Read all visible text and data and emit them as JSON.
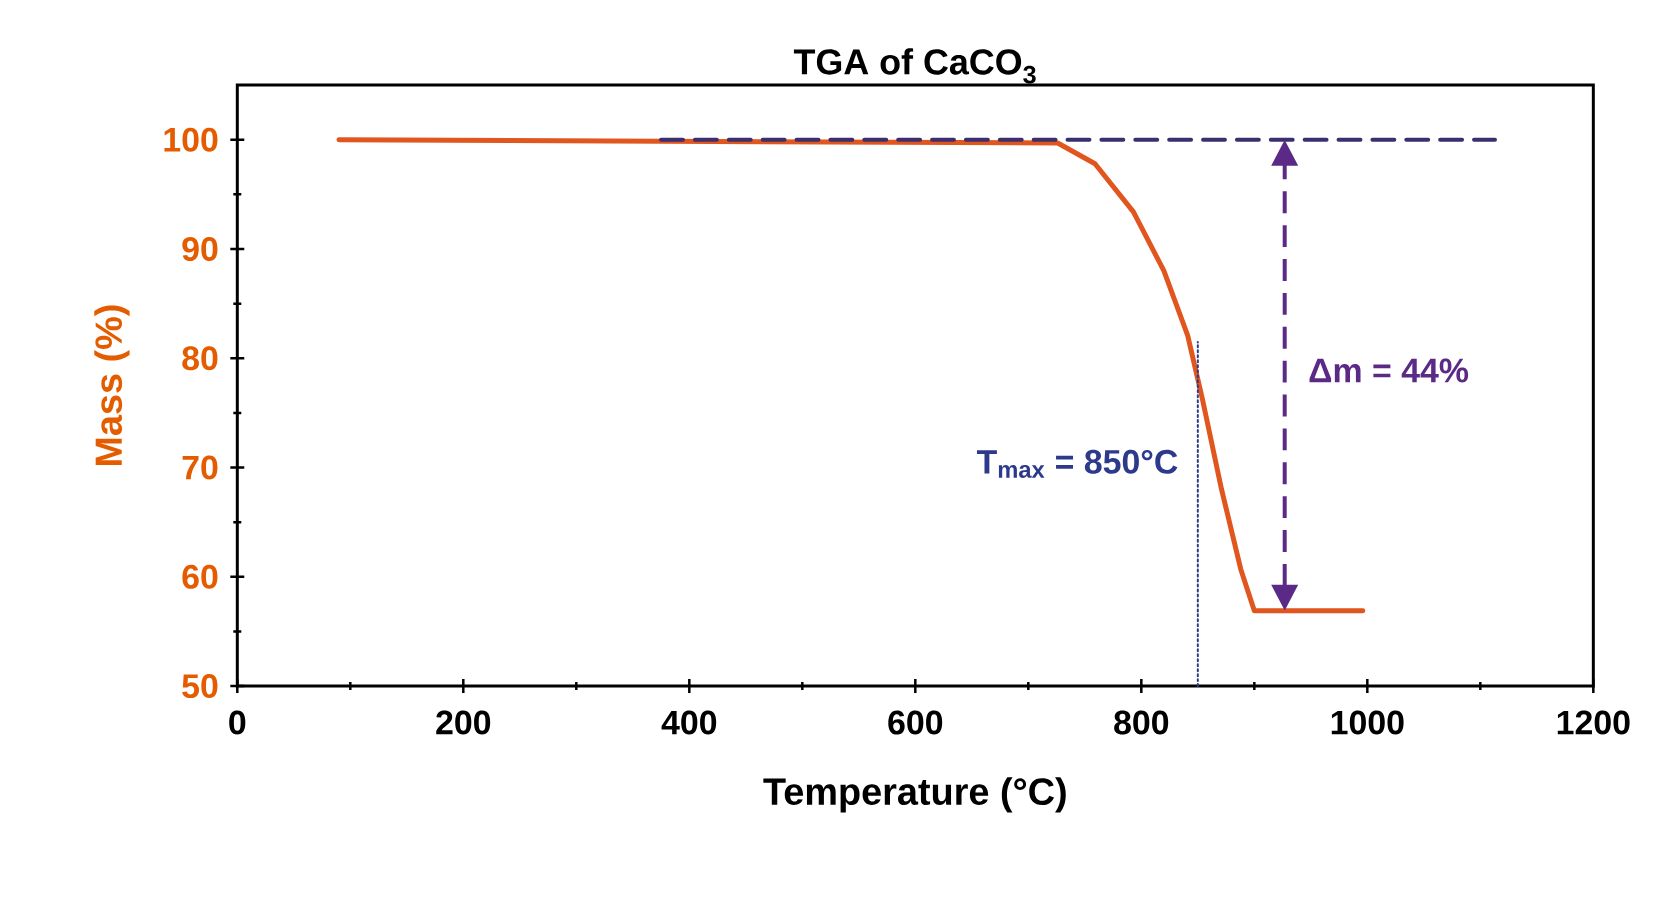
{
  "chart_data": {
    "type": "line",
    "title": "TGA of CaCO$_{3}$",
    "xlabel": "Temperature (°C)",
    "ylabel": "Mass (%)",
    "xlim": [
      0,
      1200
    ],
    "xticks": [
      0,
      200,
      400,
      600,
      800,
      1000,
      1200
    ],
    "ylim": [
      50,
      105
    ],
    "yticks": [
      50,
      60,
      70,
      80,
      90,
      100
    ],
    "grid": false,
    "marker": "none",
    "line_style": "solid",
    "series": [
      {
        "color": "#e0561e",
        "x": [
          90,
          726,
          759,
          793,
          820,
          841,
          854,
          871,
          888,
          900,
          996
        ],
        "values": [
          100,
          99.7,
          97.8,
          93.4,
          88,
          82.1,
          76.3,
          68,
          60.7,
          56.9,
          56.9
        ]
      },
      {
        "color": "#3b2f6e",
        "line_style": "dashed",
        "x": [
          375,
          1113
        ],
        "values": [
          100,
          100
        ]
      },
      {
        "color": "#2d3a8c",
        "line_style": "dotted",
        "x": [
          850,
          850
        ],
        "values": [
          50,
          81.5
        ]
      }
    ],
    "annotations": [
      {
        "text": "T$_{max}$ = 850°C",
        "x": 850,
        "y": 68
      },
      "Δm = 44%"
    ]
  }
}
